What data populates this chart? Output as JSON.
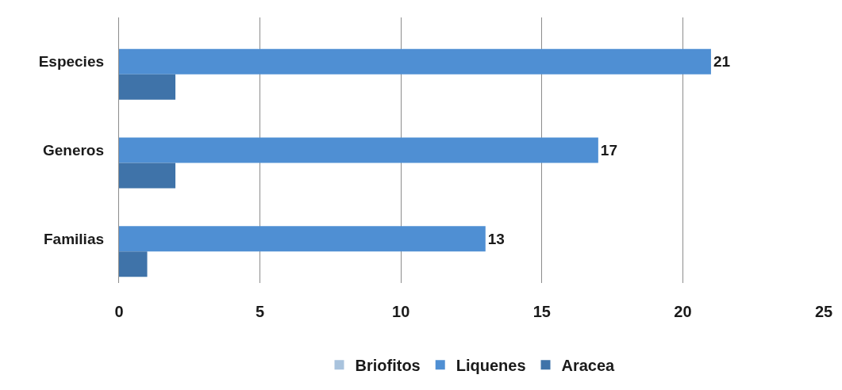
{
  "chart_data": {
    "type": "bar",
    "orientation": "horizontal",
    "categories": [
      "Especies",
      "Generos",
      "Familias"
    ],
    "series": [
      {
        "name": "Briofitos",
        "color": "#a9c3dd",
        "values": [
          0,
          0,
          0
        ]
      },
      {
        "name": "Liquenes",
        "color": "#4f8fd3",
        "values": [
          21,
          17,
          13
        ],
        "value_labels": [
          "21",
          "17",
          "13"
        ]
      },
      {
        "name": "Aracea",
        "color": "#3f73a9",
        "values": [
          2,
          2,
          1
        ]
      }
    ],
    "xlim": [
      0,
      25
    ],
    "xticks": [
      0,
      5,
      10,
      15,
      20,
      25
    ],
    "grid": "x",
    "legend": "bottom"
  }
}
